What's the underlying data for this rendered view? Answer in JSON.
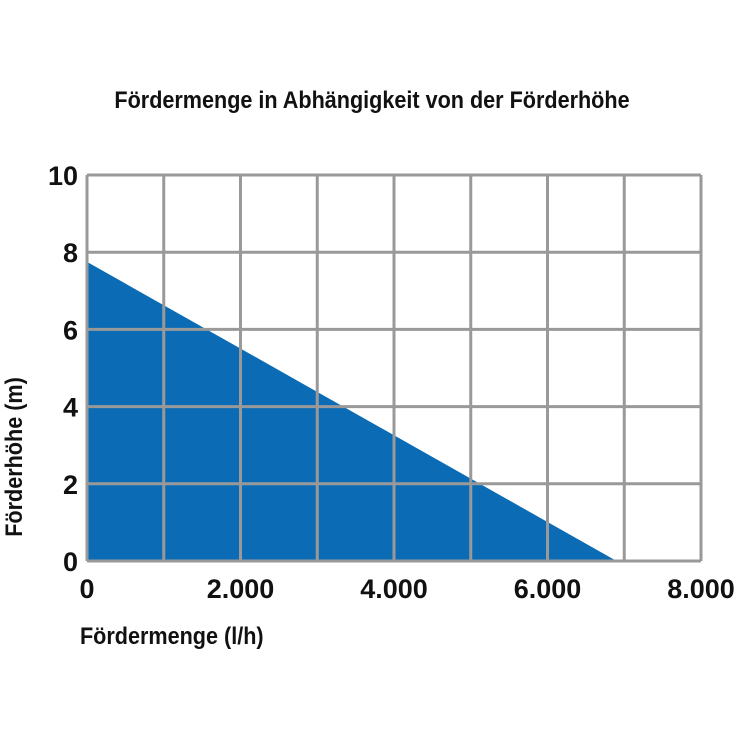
{
  "chart_data": {
    "type": "area",
    "title": "Fördermenge in Abhängigkeit von der Förderhöhe",
    "x_label": "Fördermenge (l/h)",
    "y_label": "Förderhöhe (m)",
    "x": [
      0,
      6900
    ],
    "values": [
      7.75,
      0
    ],
    "color": "#0b6cb5",
    "xlim": [
      0,
      8000
    ],
    "xticks": [
      0,
      {
        "value": 1000,
        "label": null
      },
      {
        "value": 2000,
        "label": "2.000"
      },
      {
        "value": 3000,
        "label": null
      },
      {
        "value": 4000,
        "label": "4.000"
      },
      {
        "value": 5000,
        "label": null
      },
      {
        "value": 6000,
        "label": "6.000"
      },
      {
        "value": 7000,
        "label": null
      },
      {
        "value": 8000,
        "label": "8.000"
      }
    ],
    "ylim": [
      0,
      10
    ],
    "yticks": [
      0,
      2,
      4,
      6,
      8,
      10
    ],
    "grid": true
  }
}
